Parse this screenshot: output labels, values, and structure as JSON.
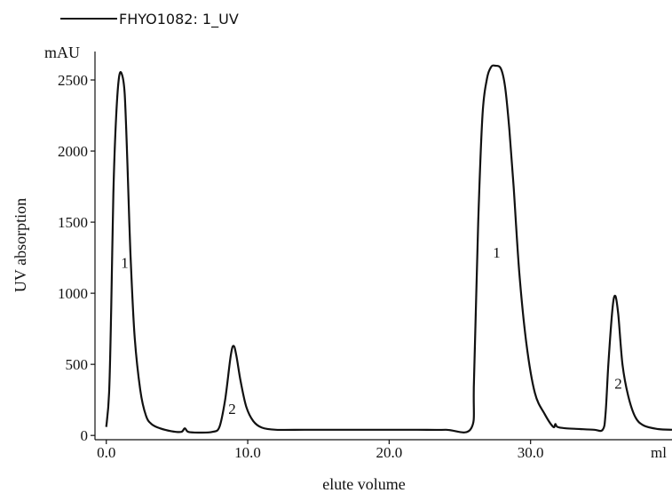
{
  "chart_data": {
    "type": "line",
    "legend": {
      "label": "FHYO1082: 1_UV",
      "placement": "top-left"
    },
    "y_unit": "mAU",
    "x_unit": "ml",
    "ylabel": "UV absorption",
    "xlabel": "elute volume",
    "xlim": [
      -0.8,
      40
    ],
    "ylim": [
      -30,
      2700
    ],
    "x_ticks": [
      0,
      10,
      20,
      30
    ],
    "x_tick_labels": [
      "0.0",
      "10.0",
      "20.0",
      "30.0"
    ],
    "y_ticks": [
      0,
      500,
      1000,
      1500,
      2000,
      2500
    ],
    "y_tick_labels": [
      "0",
      "500",
      "1000",
      "1500",
      "2000",
      "2500"
    ],
    "grid": false,
    "line_color": "#111111",
    "series": [
      {
        "name": "FHYO1082: 1_UV",
        "x": [
          0.0,
          0.2,
          0.35,
          0.5,
          0.7,
          0.9,
          1.1,
          1.3,
          1.5,
          1.7,
          2.0,
          2.4,
          2.8,
          3.2,
          3.8,
          4.6,
          5.3,
          5.55,
          5.8,
          6.5,
          7.5,
          8.0,
          8.4,
          8.8,
          9.0,
          9.2,
          9.5,
          9.9,
          10.4,
          11.0,
          12.0,
          14.0,
          16.0,
          18.0,
          20.0,
          22.0,
          24.0,
          25.8,
          26.0,
          26.3,
          26.6,
          26.9,
          27.2,
          27.5,
          27.9,
          28.2,
          28.5,
          28.8,
          29.2,
          29.7,
          30.3,
          31.0,
          31.6,
          31.75,
          31.9,
          32.5,
          33.5,
          34.5,
          35.1,
          35.3,
          35.5,
          35.8,
          36.0,
          36.2,
          36.5,
          36.9,
          37.4,
          38.0,
          39.0,
          40.0
        ],
        "y": [
          60,
          300,
          900,
          1700,
          2250,
          2520,
          2540,
          2400,
          1900,
          1300,
          700,
          320,
          140,
          80,
          50,
          30,
          25,
          50,
          25,
          20,
          25,
          60,
          250,
          560,
          630,
          560,
          380,
          200,
          100,
          55,
          40,
          40,
          40,
          40,
          40,
          40,
          40,
          50,
          400,
          1500,
          2250,
          2500,
          2590,
          2600,
          2580,
          2450,
          2150,
          1750,
          1150,
          650,
          300,
          150,
          60,
          80,
          60,
          50,
          45,
          40,
          40,
          150,
          500,
          900,
          980,
          850,
          500,
          280,
          130,
          70,
          45,
          40
        ]
      }
    ],
    "annotations": [
      {
        "text": "1",
        "x": 1.3,
        "y": 1180
      },
      {
        "text": "2",
        "x": 8.9,
        "y": 150
      },
      {
        "text": "1",
        "x": 27.6,
        "y": 1250
      },
      {
        "text": "2",
        "x": 36.2,
        "y": 330
      }
    ]
  }
}
